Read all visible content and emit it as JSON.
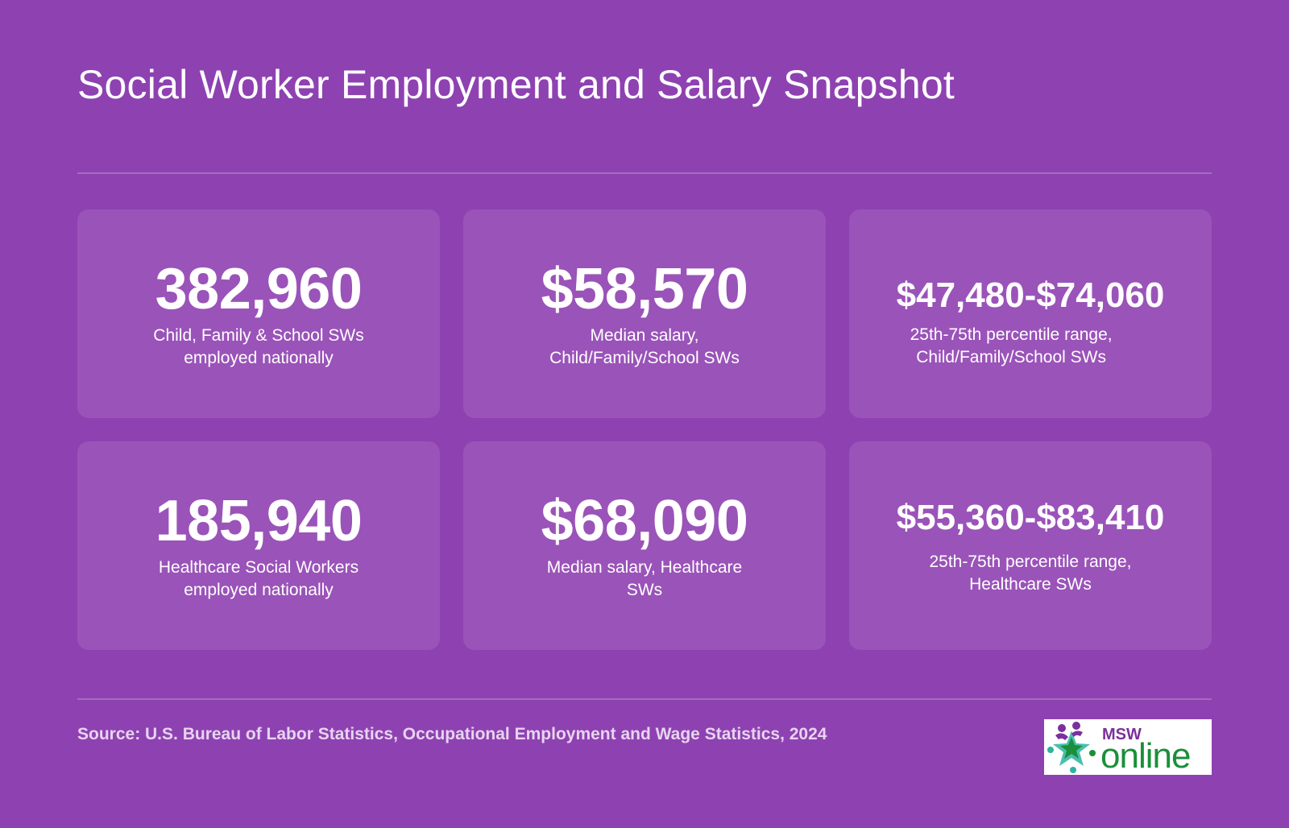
{
  "page": {
    "title": "Social Worker Employment and Salary Snapshot",
    "background_color": "#8e42b1",
    "card_color": "#9a53b9"
  },
  "stats": [
    {
      "value": "382,960",
      "label": "Child, Family & School SWs employed nationally"
    },
    {
      "value": "$58,570",
      "label": "Median salary, Child/Family/School SWs"
    },
    {
      "value": "$47,480-$74,060",
      "label": "25th-75th percentile range, Child/Family/School SWs"
    },
    {
      "value": "185,940",
      "label": "Healthcare Social Workers employed nationally"
    },
    {
      "value": "$68,090",
      "label": "Median salary, Healthcare SWs"
    },
    {
      "value": "$55,360-$83,410",
      "label": "25th-75th percentile range, Healthcare SWs"
    }
  ],
  "footer": {
    "source": "Source: U.S. Bureau of Labor Statistics, Occupational Employment and Wage Statistics, 2024"
  },
  "logo": {
    "text_top": "MSW",
    "text_main": "online",
    "colors": {
      "purple": "#7b2f9e",
      "green": "#1b8f3a",
      "teal": "#2bb3a3"
    }
  }
}
